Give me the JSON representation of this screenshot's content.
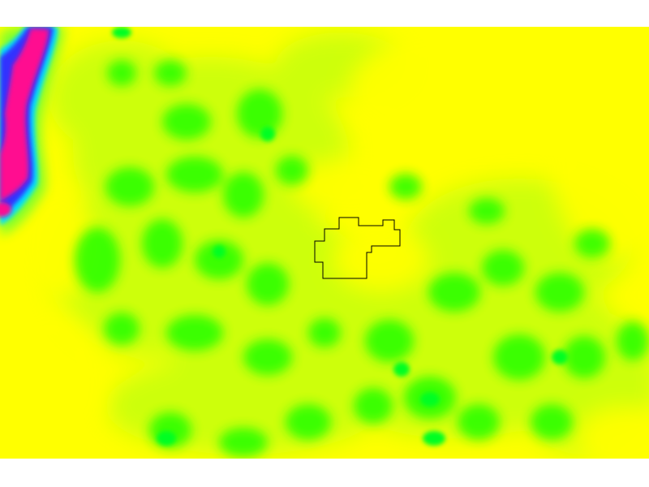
{
  "map": {
    "type": "raster-heatmap",
    "palette": {
      "background_white": "#ffffff",
      "yellow": "#ffff00",
      "yellow_light": "#f4ff1a",
      "yellow_green": "#b8ff00",
      "green": "#00ff00",
      "green_light": "#55ff22",
      "cyan": "#00e5ff",
      "blue": "#2020ff",
      "magenta": "#ff0080",
      "hot_pink": "#ff20a0",
      "outline": "#000000"
    },
    "legend": null,
    "features": [
      {
        "name": "boundary-outline",
        "kind": "polygon",
        "stroke": "#000000"
      }
    ]
  }
}
